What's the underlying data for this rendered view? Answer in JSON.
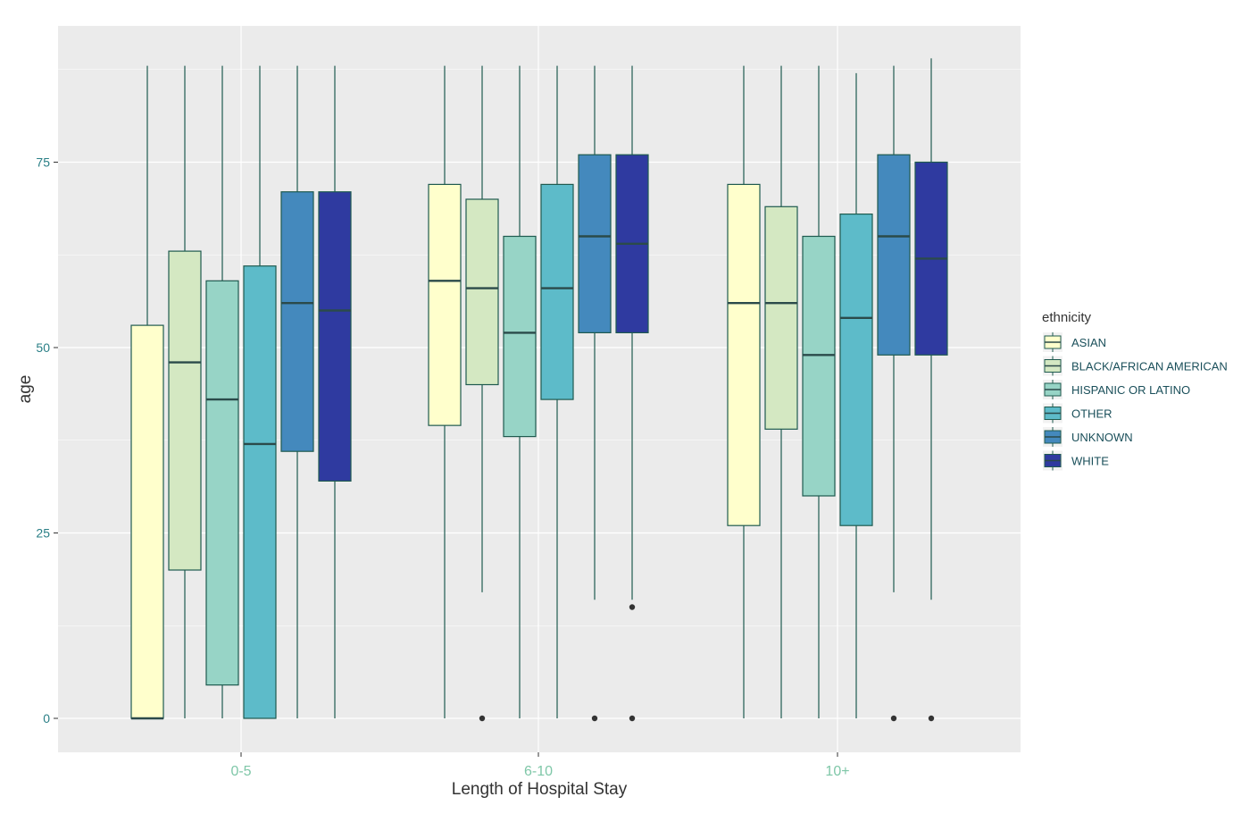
{
  "chart_data": {
    "type": "boxplot",
    "title": "",
    "xlabel": "Length of Hospital Stay",
    "ylabel": "age",
    "categories": [
      "0-5",
      "6-10",
      "10+"
    ],
    "ylim": [
      -4,
      93
    ],
    "yticks": [
      0,
      25,
      50,
      75
    ],
    "grid": true,
    "legend": {
      "title": "ethnicity",
      "position": "right"
    },
    "series": [
      {
        "name": "ASIAN",
        "color": "#ffffcc",
        "boxes": [
          {
            "min": 0,
            "q1": 0,
            "median": 0,
            "q3": 53,
            "max": 88,
            "outliers": []
          },
          {
            "min": 0,
            "q1": 39.5,
            "median": 59,
            "q3": 72,
            "max": 88,
            "outliers": []
          },
          {
            "min": 0,
            "q1": 26,
            "median": 56,
            "q3": 72,
            "max": 88,
            "outliers": []
          }
        ]
      },
      {
        "name": "BLACK/AFRICAN AMERICAN",
        "color": "#d4e8c2",
        "boxes": [
          {
            "min": 0,
            "q1": 20,
            "median": 48,
            "q3": 63,
            "max": 88,
            "outliers": []
          },
          {
            "min": 17,
            "q1": 45,
            "median": 58,
            "q3": 70,
            "max": 88,
            "outliers": [
              0
            ]
          },
          {
            "min": 0,
            "q1": 39,
            "median": 56,
            "q3": 69,
            "max": 88,
            "outliers": []
          }
        ]
      },
      {
        "name": "HISPANIC OR LATINO",
        "color": "#97d4c6",
        "boxes": [
          {
            "min": 0,
            "q1": 4.5,
            "median": 43,
            "q3": 59,
            "max": 88,
            "outliers": []
          },
          {
            "min": 0,
            "q1": 38,
            "median": 52,
            "q3": 65,
            "max": 88,
            "outliers": []
          },
          {
            "min": 0,
            "q1": 30,
            "median": 49,
            "q3": 65,
            "max": 88,
            "outliers": []
          }
        ]
      },
      {
        "name": "OTHER",
        "color": "#5dbbc9",
        "boxes": [
          {
            "min": 0,
            "q1": 0,
            "median": 37,
            "q3": 61,
            "max": 88,
            "outliers": []
          },
          {
            "min": 0,
            "q1": 43,
            "median": 58,
            "q3": 72,
            "max": 88,
            "outliers": []
          },
          {
            "min": 0,
            "q1": 26,
            "median": 54,
            "q3": 68,
            "max": 87,
            "outliers": []
          }
        ]
      },
      {
        "name": "UNKNOWN",
        "color": "#4489bd",
        "boxes": [
          {
            "min": 0,
            "q1": 36,
            "median": 56,
            "q3": 71,
            "max": 88,
            "outliers": []
          },
          {
            "min": 16,
            "q1": 52,
            "median": 65,
            "q3": 76,
            "max": 88,
            "outliers": [
              0
            ]
          },
          {
            "min": 17,
            "q1": 49,
            "median": 65,
            "q3": 76,
            "max": 88,
            "outliers": [
              0
            ]
          }
        ]
      },
      {
        "name": "WHITE",
        "color": "#2f3aa0",
        "boxes": [
          {
            "min": 0,
            "q1": 32,
            "median": 55,
            "q3": 71,
            "max": 88,
            "outliers": []
          },
          {
            "min": 16,
            "q1": 52,
            "median": 64,
            "q3": 76,
            "max": 88,
            "outliers": [
              0,
              15
            ]
          },
          {
            "min": 16,
            "q1": 49,
            "median": 62,
            "q3": 75,
            "max": 89,
            "outliers": [
              0
            ]
          }
        ]
      }
    ]
  },
  "colors": {
    "panel_bg": "#ebebeb",
    "grid": "#ffffff",
    "tick_text_y": "#2a7f86",
    "tick_text_x": "#7fc7a8",
    "axis_title": "#333333",
    "whisker": "#1f5a4f",
    "median": "#2b4a4a"
  }
}
